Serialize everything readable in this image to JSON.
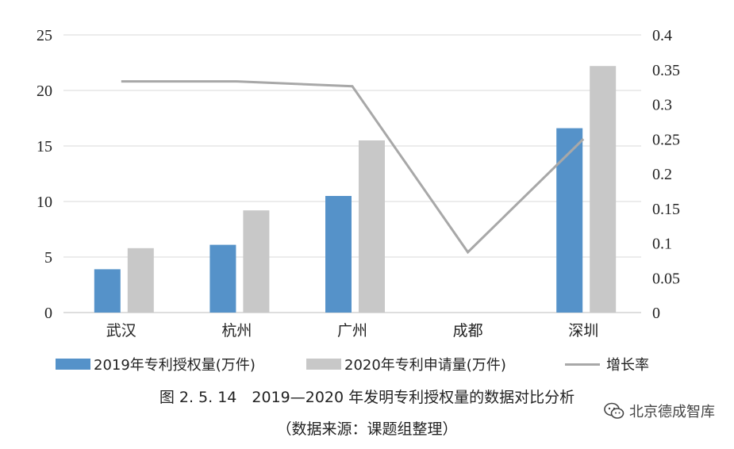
{
  "chart_data": {
    "type": "bar",
    "categories": [
      "武汉",
      "杭州",
      "广州",
      "成都",
      "深圳"
    ],
    "series": [
      {
        "name": "2019年专利授权量(万件)",
        "kind": "bar",
        "axis": "left",
        "color": "#5592c9",
        "values": [
          3.9,
          6.1,
          10.5,
          null,
          16.6
        ]
      },
      {
        "name": "2020年专利申请量(万件)",
        "kind": "bar",
        "axis": "left",
        "color": "#c8c8c8",
        "values": [
          5.8,
          9.2,
          15.5,
          null,
          22.2
        ]
      },
      {
        "name": "增长率",
        "kind": "line",
        "axis": "right",
        "color": "#a8a8a8",
        "values": [
          0.333,
          0.333,
          0.326,
          0.087,
          0.25
        ]
      }
    ],
    "ylim": [
      0,
      25
    ],
    "yticks": [
      0,
      5,
      10,
      15,
      20,
      25
    ],
    "y2lim": [
      0,
      0.4
    ],
    "y2ticks": [
      "0",
      "0.05",
      "0.1",
      "0.15",
      "0.2",
      "0.25",
      "0.3",
      "0.35",
      "0.4"
    ],
    "grid": true,
    "legend_position": "bottom",
    "caption": "图 2. 5. 14　2019—2020 年发明专利授权量的数据对比分析",
    "source_note": "（数据来源：课题组整理）"
  },
  "watermark": {
    "text": "北京德成智库",
    "icon": "wechat-icon"
  }
}
